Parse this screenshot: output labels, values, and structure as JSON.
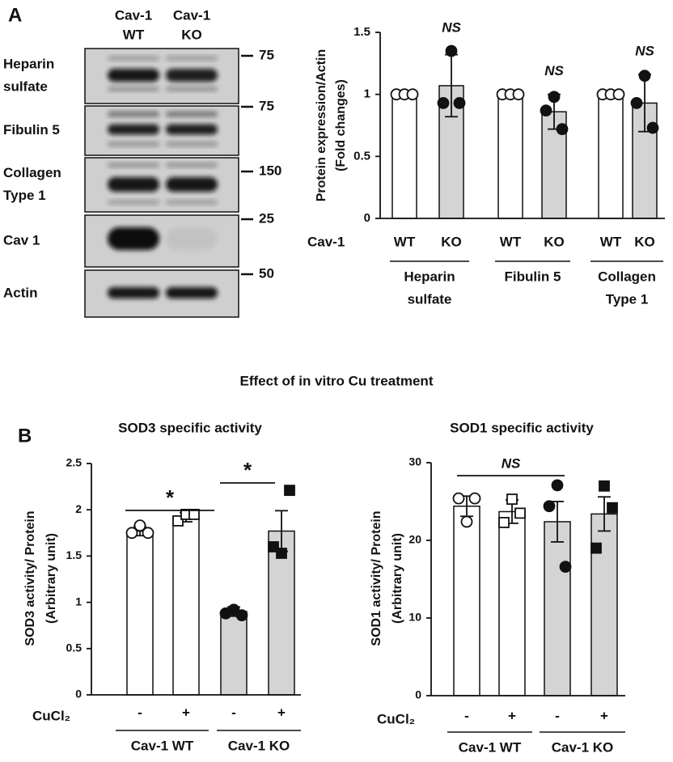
{
  "panel_labels": [
    "A",
    "B"
  ],
  "blot": {
    "lanes": [
      [
        "Cav-1",
        "WT"
      ],
      [
        "Cav-1",
        "KO"
      ]
    ],
    "rows": [
      {
        "label": [
          "Heparin",
          "sulfate"
        ],
        "marker": "75"
      },
      {
        "label": [
          "Fibulin 5"
        ],
        "marker": "75"
      },
      {
        "label": [
          "Collagen",
          "Type 1"
        ],
        "marker": "150"
      },
      {
        "label": [
          "Cav 1"
        ],
        "marker": "25"
      },
      {
        "label": [
          "Actin"
        ],
        "marker": "50"
      }
    ]
  },
  "figure_title": "Effect of in vitro Cu treatment",
  "chart_data": [
    {
      "type": "bar",
      "ylabel": [
        "Protein expression/Actin",
        "(Fold changes)"
      ],
      "x_axis_label": "Cav-1",
      "categories": [
        "WT",
        "KO",
        "WT",
        "KO",
        "WT",
        "KO"
      ],
      "groups": [
        [
          "Heparin",
          "sulfate"
        ],
        [
          "Fibulin 5"
        ],
        [
          "Collagen",
          "Type 1"
        ]
      ],
      "values": [
        1,
        1.07,
        1,
        0.86,
        1,
        0.93
      ],
      "errors": [
        null,
        0.25,
        null,
        0.14,
        null,
        0.23
      ],
      "points": [
        [
          1,
          1,
          1
        ],
        [
          0.93,
          1.35,
          0.93
        ],
        [
          1,
          1,
          1
        ],
        [
          0.87,
          0.98,
          0.72
        ],
        [
          1,
          1,
          1
        ],
        [
          0.93,
          1.15,
          0.73
        ]
      ],
      "colors": [
        "#ffffff",
        "#d4d4d4",
        "#ffffff",
        "#d4d4d4",
        "#ffffff",
        "#d4d4d4"
      ],
      "markers": [
        "open-circle",
        "filled-circle",
        "open-circle",
        "filled-circle",
        "open-circle",
        "filled-circle"
      ],
      "annotations": [
        null,
        "NS",
        null,
        "NS",
        null,
        "NS"
      ],
      "ylim": [
        0,
        1.5
      ],
      "yticks": [
        0,
        0.5,
        1,
        1.5
      ]
    },
    {
      "type": "bar",
      "title": "SOD3 specific activity",
      "ylabel": [
        "SOD3 activity/ Protein",
        "(Arbitrary unit)"
      ],
      "x_axis_label": "CuCl₂",
      "categories": [
        "-",
        "+",
        "-",
        "+"
      ],
      "groups": [
        [
          "Cav-1 WT"
        ],
        [
          "Cav-1 KO"
        ]
      ],
      "values": [
        1.77,
        1.92,
        0.9,
        1.77
      ],
      "errors": [
        0.05,
        0.05,
        0.05,
        0.22
      ],
      "points": [
        [
          1.75,
          1.83,
          1.75
        ],
        [
          1.88,
          1.95,
          1.95
        ],
        [
          0.88,
          0.92,
          0.86
        ],
        [
          1.6,
          1.53,
          2.21
        ]
      ],
      "colors": [
        "#ffffff",
        "#ffffff",
        "#d4d4d4",
        "#d4d4d4"
      ],
      "markers": [
        "open-circle",
        "open-square",
        "filled-circle",
        "filled-square"
      ],
      "comparisons": [
        {
          "label": "*",
          "bars": [
            0,
            2
          ]
        },
        {
          "label": "*",
          "bars": [
            2,
            3
          ]
        }
      ],
      "ylim": [
        0,
        2.5
      ],
      "yticks": [
        0,
        0.5,
        1,
        1.5,
        2,
        2.5
      ]
    },
    {
      "type": "bar",
      "title": "SOD1 specific activity",
      "ylabel": [
        "SOD1 activity/ Protein",
        "(Arbitrary unit)"
      ],
      "x_axis_label": "CuCl₂",
      "categories": [
        "-",
        "+",
        "-",
        "+"
      ],
      "groups": [
        [
          "Cav-1 WT"
        ],
        [
          "Cav-1 KO"
        ]
      ],
      "values": [
        24.4,
        23.7,
        22.4,
        23.4
      ],
      "errors": [
        1.3,
        1.5,
        2.6,
        2.2
      ],
      "points": [
        [
          25.4,
          22.4,
          25.4
        ],
        [
          22.3,
          25.3,
          23.5
        ],
        [
          24.4,
          27.1,
          16.6
        ],
        [
          19,
          27,
          24.2
        ]
      ],
      "colors": [
        "#ffffff",
        "#ffffff",
        "#d4d4d4",
        "#d4d4d4"
      ],
      "markers": [
        "open-circle",
        "open-square",
        "filled-circle",
        "filled-square"
      ],
      "comparisons": [
        {
          "label": "NS",
          "bars": [
            0,
            2
          ]
        }
      ],
      "ylim": [
        0,
        30
      ],
      "yticks": [
        0,
        10,
        20,
        30
      ]
    }
  ]
}
